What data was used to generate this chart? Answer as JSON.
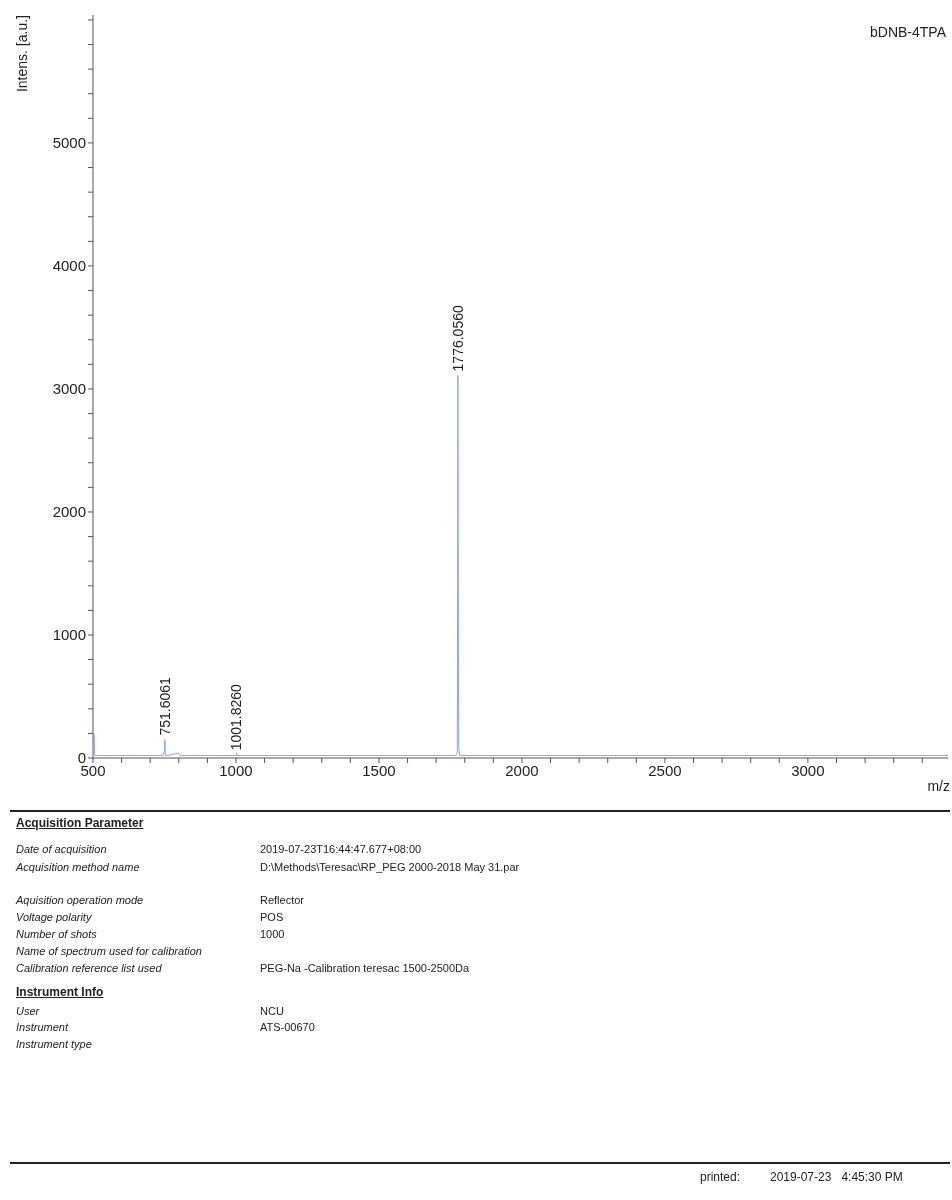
{
  "chart_data": {
    "type": "line",
    "title": "bDNB-4TPA",
    "xlabel": "m/z",
    "ylabel": "Intens. [a.u.]",
    "xlim": [
      500,
      3490
    ],
    "ylim": [
      0,
      6040
    ],
    "xticks": [
      500,
      {
        "value": 600,
        "label": null
      },
      {
        "value": 700,
        "label": null
      },
      {
        "value": 800,
        "label": null
      },
      {
        "value": 900,
        "label": null
      },
      1000,
      {
        "value": 1100,
        "label": null
      },
      {
        "value": 1200,
        "label": null
      },
      {
        "value": 1300,
        "label": null
      },
      {
        "value": 1400,
        "label": null
      },
      1500,
      {
        "value": 1600,
        "label": null
      },
      {
        "value": 1700,
        "label": null
      },
      {
        "value": 1800,
        "label": null
      },
      {
        "value": 1900,
        "label": null
      },
      2000,
      {
        "value": 2100,
        "label": null
      },
      {
        "value": 2200,
        "label": null
      },
      {
        "value": 2300,
        "label": null
      },
      {
        "value": 2400,
        "label": null
      },
      2500,
      {
        "value": 2600,
        "label": null
      },
      {
        "value": 2700,
        "label": null
      },
      {
        "value": 2800,
        "label": null
      },
      {
        "value": 2900,
        "label": null
      },
      3000,
      {
        "value": 3100,
        "label": null
      },
      {
        "value": 3200,
        "label": null
      },
      {
        "value": 3300,
        "label": null
      },
      {
        "value": 3400,
        "label": null
      }
    ],
    "yticks": [
      0,
      {
        "value": 200,
        "label": null
      },
      {
        "value": 400,
        "label": null
      },
      {
        "value": 600,
        "label": null
      },
      {
        "value": 800,
        "label": null
      },
      1000,
      {
        "value": 1200,
        "label": null
      },
      {
        "value": 1400,
        "label": null
      },
      {
        "value": 1600,
        "label": null
      },
      {
        "value": 1800,
        "label": null
      },
      2000,
      {
        "value": 2200,
        "label": null
      },
      {
        "value": 2400,
        "label": null
      },
      {
        "value": 2600,
        "label": null
      },
      {
        "value": 2800,
        "label": null
      },
      3000,
      {
        "value": 3200,
        "label": null
      },
      {
        "value": 3400,
        "label": null
      },
      {
        "value": 3600,
        "label": null
      },
      {
        "value": 3800,
        "label": null
      },
      4000,
      {
        "value": 4200,
        "label": null
      },
      {
        "value": 4400,
        "label": null
      },
      {
        "value": 4600,
        "label": null
      },
      {
        "value": 4800,
        "label": null
      },
      5000,
      {
        "value": 5200,
        "label": null
      },
      {
        "value": 5400,
        "label": null
      },
      {
        "value": 5600,
        "label": null
      },
      {
        "value": 5800,
        "label": null
      },
      {
        "value": 6000,
        "label": null
      }
    ],
    "grid": false,
    "series": [
      {
        "color": "#8aa6f2",
        "x": [
          504,
          506,
          550,
          600,
          650,
          700,
          745,
          750,
          751.6,
          753,
          760,
          800,
          805,
          850,
          900,
          950,
          1000,
          1001.8,
          1004,
          1100,
          1200,
          1300,
          1400,
          1500,
          1600,
          1700,
          1770,
          1774,
          1775,
          1776,
          1777,
          1778,
          1779,
          1782,
          1850,
          1900,
          2000,
          2100,
          2200,
          2300,
          2400,
          2500,
          2600,
          2700,
          2800,
          2900,
          3000,
          3100,
          3200,
          3300,
          3400,
          3490
        ],
        "values": [
          200,
          20,
          20,
          20,
          20,
          20,
          20,
          60,
          150,
          20,
          20,
          40,
          20,
          20,
          20,
          20,
          20,
          40,
          20,
          20,
          20,
          20,
          20,
          20,
          20,
          20,
          20,
          40,
          1450,
          3110,
          1950,
          650,
          100,
          20,
          20,
          20,
          20,
          20,
          20,
          20,
          20,
          20,
          20,
          20,
          20,
          20,
          20,
          20,
          20,
          20,
          20,
          20
        ]
      }
    ],
    "annotations": [
      {
        "text": "751.6061",
        "x": 751.6,
        "y": 150
      },
      {
        "text": "1001.8260",
        "x": 1001.8,
        "y": 30
      },
      {
        "text": "1776.0560",
        "x": 1776,
        "y": 3110
      },
      "Acquisition Parameter",
      "Date of acquisition",
      "2019-07-23T16:44:47.677+08:00",
      "Acquisition method name",
      "D:\\Methods\\Teresac\\RP_PEG 2000-2018 May 31.par",
      "Aquisition operation mode",
      "Reflector",
      "Voltage polarity",
      "POS",
      "Number of shots",
      "1000",
      "Name of spectrum used for calibration",
      "Calibration reference list used",
      "PEG-Na -Calibration teresac 1500-2500Da",
      "Instrument Info",
      "User",
      "NCU",
      "Instrument",
      "ATS-00670",
      "Instrument type",
      "printed:",
      "2019-07-23   4:45:30 PM"
    ]
  }
}
